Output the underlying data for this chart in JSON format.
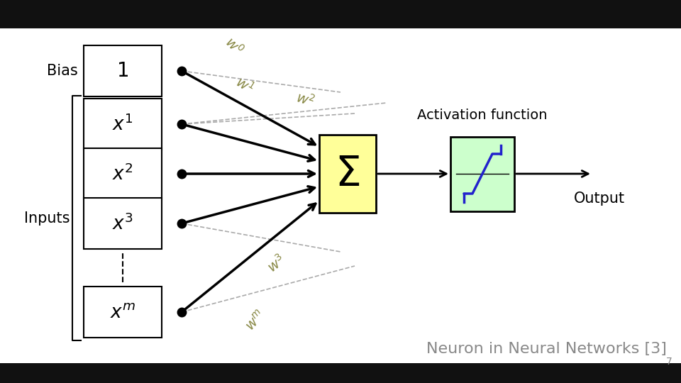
{
  "bg_color": "#e8e8e8",
  "main_bg": "#ffffff",
  "box_color": "#ffffff",
  "box_edge_color": "#000000",
  "sum_box_color": "#ffff99",
  "act_box_color": "#ccffcc",
  "act_curve_color": "#2222cc",
  "title_text": "Neuron in Neural Networks [3]",
  "title_color": "#888888",
  "bias_label": "Bias",
  "inputs_label": "Inputs",
  "output_label": "Output",
  "act_label": "Activation function",
  "box_labels": [
    "1",
    "x^1",
    "x^2",
    "x^3",
    "x^m"
  ],
  "weight_labels": [
    "w^0",
    "w^1",
    "w^2",
    "w^3",
    "w^m"
  ],
  "top_bar_color": "#111111",
  "bot_bar_color": "#111111",
  "weight_color": "#888855",
  "node_color": "#000000",
  "arrow_color": "#000000"
}
